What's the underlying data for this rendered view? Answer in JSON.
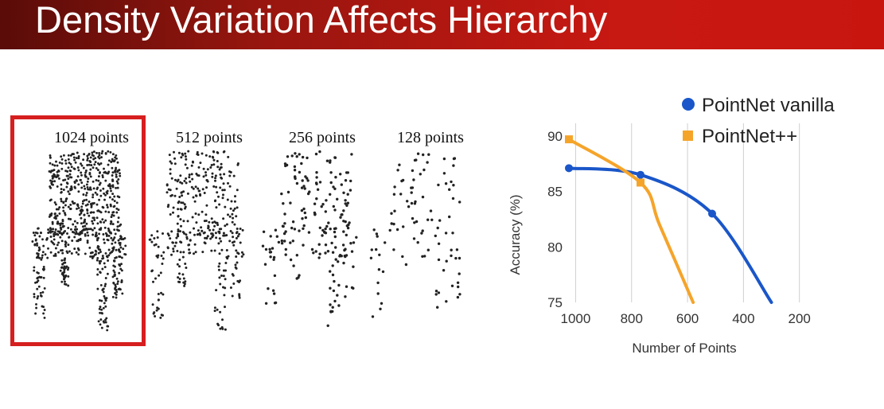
{
  "slide": {
    "title": "Density Variation Affects Hierarchy",
    "accent_color": "#c8160f",
    "highlight_color": "#d61f1f"
  },
  "point_clouds": [
    {
      "label": "1024 points",
      "count": 1024,
      "highlighted": true
    },
    {
      "label": "512 points",
      "count": 512,
      "highlighted": false
    },
    {
      "label": "256 points",
      "count": 256,
      "highlighted": false
    },
    {
      "label": "128 points",
      "count": 128,
      "highlighted": false
    }
  ],
  "chart_data": {
    "type": "line",
    "xlabel": "Number of Points",
    "ylabel": "Accuracy (%)",
    "x_reversed": true,
    "xlim": [
      1024,
      128
    ],
    "ylim": [
      75,
      91.5
    ],
    "x_ticks": [
      1000,
      800,
      600,
      400,
      200
    ],
    "y_ticks": [
      75,
      80,
      85,
      90
    ],
    "grid": "vertical",
    "legend_position": "top-right",
    "series": [
      {
        "name": "PointNet vanilla",
        "color": "#1a56c9",
        "marker": "circle",
        "x": [
          1024,
          768,
          512,
          300
        ],
        "y": [
          87.1,
          86.5,
          83.0,
          75.0
        ],
        "marked_points": [
          [
            1024,
            87.1
          ],
          [
            768,
            86.5
          ],
          [
            512,
            83.0
          ]
        ]
      },
      {
        "name": "PointNet++",
        "color": "#f5a42a",
        "marker": "square",
        "x": [
          1024,
          768,
          700,
          580
        ],
        "y": [
          89.7,
          85.8,
          82.0,
          75.0
        ],
        "marked_points": [
          [
            1024,
            89.7
          ],
          [
            768,
            85.8
          ]
        ]
      }
    ]
  }
}
